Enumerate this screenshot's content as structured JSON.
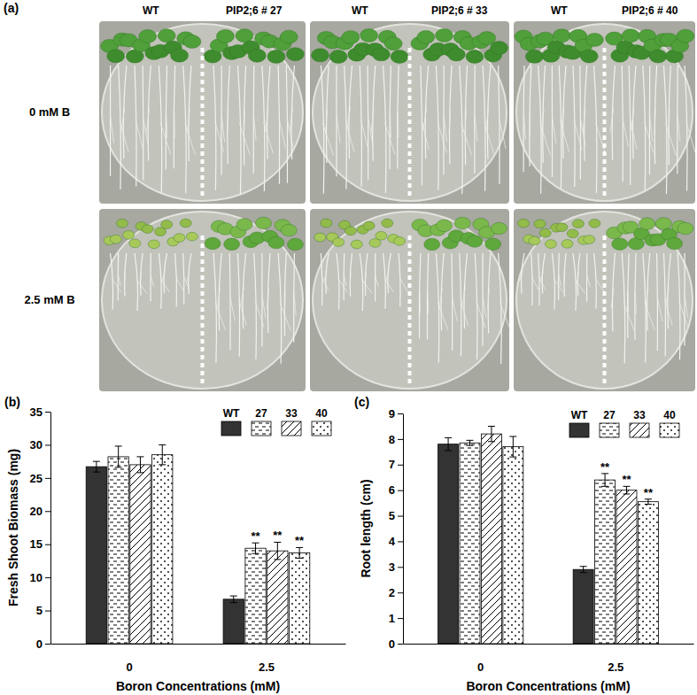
{
  "panel_a": {
    "label": "(a)",
    "rows": [
      "0 mM B",
      "2.5 mM B"
    ],
    "columns": [
      {
        "left": "WT",
        "right": "PIP2;6 # 27"
      },
      {
        "left": "WT",
        "right": "PIP2;6 # 33"
      },
      {
        "left": "WT",
        "right": "PIP2;6 # 40"
      }
    ]
  },
  "chart_data": [
    {
      "type": "bar",
      "title": "(b)",
      "x_label": "Boron Concentrations (mM)",
      "y_label": "Fresh Shoot Biomass (mg)",
      "categories": [
        "0",
        "2.5"
      ],
      "series": [
        {
          "name": "WT",
          "color": "#333333",
          "values": [
            26.7,
            6.7
          ],
          "errors": [
            0.8,
            0.5
          ]
        },
        {
          "name": "27",
          "color": "#ffffff",
          "values": [
            28.2,
            14.4
          ],
          "errors": [
            1.6,
            0.8
          ],
          "annotations": [
            null,
            "**"
          ]
        },
        {
          "name": "33",
          "color": "#ffffff",
          "values": [
            27.0,
            14.0
          ],
          "errors": [
            1.2,
            1.3
          ],
          "annotations": [
            null,
            "**"
          ]
        },
        {
          "name": "40",
          "color": "#ffffff",
          "values": [
            28.5,
            13.7
          ],
          "errors": [
            1.5,
            0.8
          ],
          "annotations": [
            null,
            "**"
          ]
        }
      ],
      "ylim": [
        0,
        35
      ],
      "yticks": [
        0,
        5,
        10,
        15,
        20,
        25,
        30,
        35
      ],
      "legend": "upper right"
    },
    {
      "type": "bar",
      "title": "(c)",
      "x_label": "Boron Concentrations (mM)",
      "y_label": "Root length (cm)",
      "categories": [
        "0",
        "2.5"
      ],
      "series": [
        {
          "name": "WT",
          "color": "#333333",
          "values": [
            7.8,
            2.9
          ],
          "errors": [
            0.25,
            0.12
          ]
        },
        {
          "name": "27",
          "color": "#ffffff",
          "values": [
            7.85,
            6.4
          ],
          "errors": [
            0.1,
            0.25
          ],
          "annotations": [
            null,
            "**"
          ]
        },
        {
          "name": "33",
          "color": "#ffffff",
          "values": [
            8.2,
            6.0
          ],
          "errors": [
            0.3,
            0.15
          ],
          "annotations": [
            null,
            "**"
          ]
        },
        {
          "name": "40",
          "color": "#ffffff",
          "values": [
            7.7,
            5.55
          ],
          "errors": [
            0.4,
            0.1
          ],
          "annotations": [
            null,
            "**"
          ]
        }
      ],
      "ylim": [
        0,
        9
      ],
      "yticks": [
        0,
        1,
        2,
        3,
        4,
        5,
        6,
        7,
        8,
        9
      ],
      "legend": "upper right"
    }
  ]
}
